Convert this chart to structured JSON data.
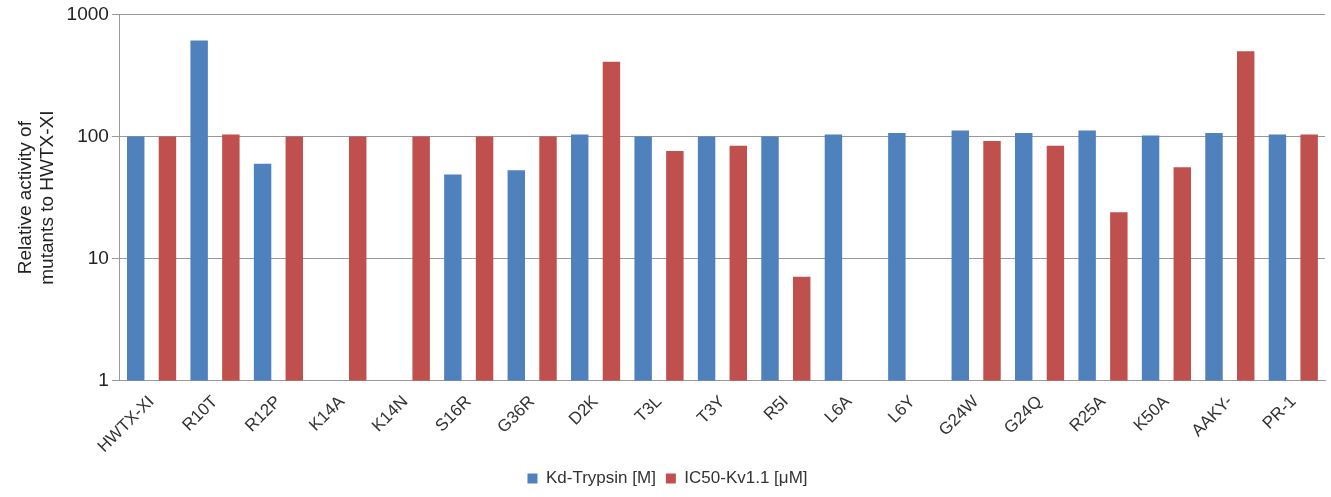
{
  "chart_data": {
    "type": "bar",
    "ylabel": "Relative activity of\nmutants to HWTX-XI",
    "categories": [
      "HWTX-XI",
      "R10T",
      "R12P",
      "K14A",
      "K14N",
      "S16R",
      "G36R",
      "D2K",
      "T3L",
      "T3Y",
      "R5I",
      "L6A",
      "L6Y",
      "G24W",
      "G24Q",
      "R25A",
      "K50A",
      "AAKY-",
      "PR-1"
    ],
    "series": [
      {
        "name": "Kd-Trypsin [M]",
        "color": "#4f81bd",
        "values": [
          100,
          610,
          60,
          null,
          null,
          49,
          53,
          104,
          100,
          100,
          100,
          104,
          107,
          112,
          107,
          112,
          102,
          107,
          104
        ]
      },
      {
        "name": "IC50-Kv1.1 [μM]",
        "color": "#c0504d",
        "values": [
          100,
          104,
          100,
          100,
          100,
          100,
          100,
          410,
          76,
          84,
          7.1,
          null,
          null,
          92,
          84,
          24,
          56,
          500,
          104
        ]
      }
    ],
    "log": "y",
    "ylim": [
      1,
      1000
    ],
    "yticks": [
      1,
      10,
      100,
      1000
    ],
    "grid": "y",
    "legend": "bottom"
  }
}
